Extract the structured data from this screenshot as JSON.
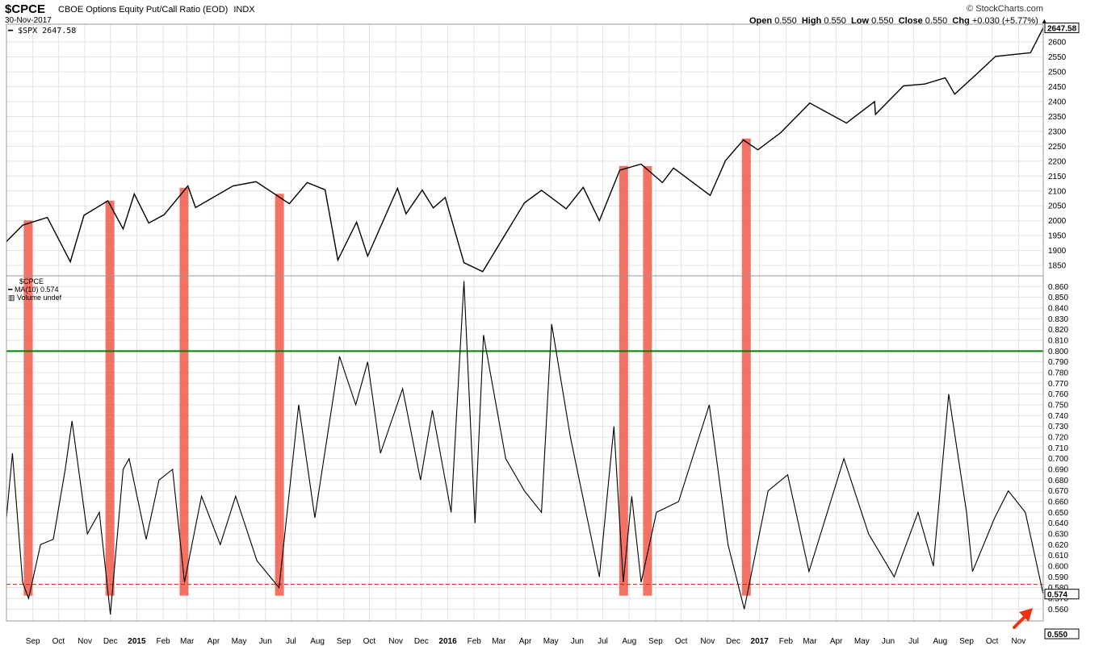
{
  "header": {
    "symbol": "$CPCE",
    "description": "CBOE Options Equity Put/Call Ratio (EOD)",
    "exchange": "INDX",
    "date": "30-Nov-2017",
    "brand": "© StockCharts.com",
    "ohlc": {
      "open_label": "Open",
      "open": "0.550",
      "high_label": "High",
      "high": "0.550",
      "low_label": "Low",
      "low": "0.550",
      "close_label": "Close",
      "close": "0.550",
      "chg_label": "Chg",
      "chg": "+0.030 (+5.77%)"
    }
  },
  "upper_panel": {
    "legend": "$SPX 2647.58",
    "last_value_label": "2647.58"
  },
  "lower_panel": {
    "legend_symbol": "$CPCE",
    "legend_ma": "MA(10) 0.574",
    "legend_volume": "Volume undef",
    "ma_value_label": "0.574",
    "last_value_label": "0.550"
  },
  "colors": {
    "price_line": "#000000",
    "ma_line": "#000000",
    "green_line": "#008000",
    "red_dashed": "#cc2200",
    "highlight_bar": "#f05a4a",
    "grid": "#e2e2e2",
    "arrow": "#ee3311"
  },
  "chart_data": [
    {
      "type": "line",
      "series": [
        {
          "name": "$SPX",
          "type": "line",
          "points": [
            [
              "2014-08-01",
              1930
            ],
            [
              "2014-08-20",
              1985
            ],
            [
              "2014-09-18",
              2011
            ],
            [
              "2014-10-15",
              1862
            ],
            [
              "2014-10-31",
              2018
            ],
            [
              "2014-11-28",
              2067
            ],
            [
              "2014-12-16",
              1972
            ],
            [
              "2014-12-29",
              2090
            ],
            [
              "2015-01-15",
              1992
            ],
            [
              "2015-02-02",
              2020
            ],
            [
              "2015-03-02",
              2117
            ],
            [
              "2015-03-11",
              2044
            ],
            [
              "2015-04-24",
              2117
            ],
            [
              "2015-05-21",
              2131
            ],
            [
              "2015-06-29",
              2057
            ],
            [
              "2015-07-20",
              2128
            ],
            [
              "2015-08-10",
              2104
            ],
            [
              "2015-08-25",
              1868
            ],
            [
              "2015-09-16",
              1995
            ],
            [
              "2015-09-29",
              1881
            ],
            [
              "2015-11-03",
              2109
            ],
            [
              "2015-11-13",
              2023
            ],
            [
              "2015-12-02",
              2103
            ],
            [
              "2015-12-15",
              2043
            ],
            [
              "2015-12-29",
              2078
            ],
            [
              "2016-01-20",
              1859
            ],
            [
              "2016-02-11",
              1829
            ],
            [
              "2016-03-31",
              2060
            ],
            [
              "2016-04-20",
              2102
            ],
            [
              "2016-05-19",
              2040
            ],
            [
              "2016-06-08",
              2112
            ],
            [
              "2016-06-27",
              2000
            ],
            [
              "2016-07-21",
              2170
            ],
            [
              "2016-08-15",
              2190
            ],
            [
              "2016-09-09",
              2128
            ],
            [
              "2016-09-22",
              2177
            ],
            [
              "2016-11-04",
              2085
            ],
            [
              "2016-11-22",
              2202
            ],
            [
              "2016-12-13",
              2271
            ],
            [
              "2016-12-30",
              2238
            ],
            [
              "2017-01-26",
              2296
            ],
            [
              "2017-03-01",
              2395
            ],
            [
              "2017-04-13",
              2328
            ],
            [
              "2017-05-16",
              2400
            ],
            [
              "2017-05-17",
              2357
            ],
            [
              "2017-06-19",
              2453
            ],
            [
              "2017-07-14",
              2459
            ],
            [
              "2017-08-07",
              2480
            ],
            [
              "2017-08-18",
              2425
            ],
            [
              "2017-09-14",
              2496
            ],
            [
              "2017-10-05",
              2552
            ],
            [
              "2017-11-15",
              2564
            ],
            [
              "2017-11-30",
              2647.58
            ]
          ]
        }
      ],
      "x_range": [
        "2014-08-01",
        "2017-11-30"
      ],
      "x_ticks": [
        "Sep",
        "Oct",
        "Nov",
        "Dec",
        "2015",
        "Feb",
        "Mar",
        "Apr",
        "May",
        "Jun",
        "Jul",
        "Aug",
        "Sep",
        "Oct",
        "Nov",
        "Dec",
        "2016",
        "Feb",
        "Mar",
        "Apr",
        "May",
        "Jun",
        "Jul",
        "Aug",
        "Sep",
        "Oct",
        "Nov",
        "Dec",
        "2017",
        "Feb",
        "Mar",
        "Apr",
        "May",
        "Jun",
        "Jul",
        "Aug",
        "Sep",
        "Oct",
        "Nov"
      ],
      "y_ticks": [
        1850,
        1900,
        1950,
        2000,
        2050,
        2100,
        2150,
        2200,
        2250,
        2300,
        2350,
        2400,
        2450,
        2500,
        2550,
        2600
      ],
      "ylim": [
        1815,
        2660
      ],
      "last_value": 2647.58,
      "grid": true
    },
    {
      "type": "line",
      "series": [
        {
          "name": "MA(10)",
          "type": "line",
          "points": [
            [
              "2014-08-01",
              0.645
            ],
            [
              "2014-08-08",
              0.705
            ],
            [
              "2014-08-20",
              0.585
            ],
            [
              "2014-08-27",
              0.57
            ],
            [
              "2014-09-10",
              0.62
            ],
            [
              "2014-09-25",
              0.625
            ],
            [
              "2014-10-09",
              0.69
            ],
            [
              "2014-10-17",
              0.735
            ],
            [
              "2014-11-04",
              0.63
            ],
            [
              "2014-11-18",
              0.65
            ],
            [
              "2014-12-01",
              0.555
            ],
            [
              "2014-12-16",
              0.69
            ],
            [
              "2014-12-23",
              0.7
            ],
            [
              "2015-01-12",
              0.625
            ],
            [
              "2015-01-27",
              0.68
            ],
            [
              "2015-02-12",
              0.69
            ],
            [
              "2015-02-26",
              0.585
            ],
            [
              "2015-03-18",
              0.665
            ],
            [
              "2015-04-09",
              0.62
            ],
            [
              "2015-04-27",
              0.665
            ],
            [
              "2015-05-22",
              0.605
            ],
            [
              "2015-06-17",
              0.58
            ],
            [
              "2015-07-10",
              0.75
            ],
            [
              "2015-07-29",
              0.645
            ],
            [
              "2015-08-27",
              0.795
            ],
            [
              "2015-09-15",
              0.75
            ],
            [
              "2015-09-29",
              0.79
            ],
            [
              "2015-10-14",
              0.705
            ],
            [
              "2015-11-09",
              0.765
            ],
            [
              "2015-11-30",
              0.68
            ],
            [
              "2015-12-14",
              0.745
            ],
            [
              "2016-01-05",
              0.65
            ],
            [
              "2016-01-20",
              0.865
            ],
            [
              "2016-02-02",
              0.64
            ],
            [
              "2016-02-12",
              0.815
            ],
            [
              "2016-03-09",
              0.7
            ],
            [
              "2016-03-31",
              0.67
            ],
            [
              "2016-04-20",
              0.65
            ],
            [
              "2016-05-02",
              0.825
            ],
            [
              "2016-05-24",
              0.72
            ],
            [
              "2016-06-27",
              0.59
            ],
            [
              "2016-07-14",
              0.73
            ],
            [
              "2016-07-25",
              0.585
            ],
            [
              "2016-08-04",
              0.665
            ],
            [
              "2016-08-15",
              0.585
            ],
            [
              "2016-09-02",
              0.65
            ],
            [
              "2016-09-28",
              0.66
            ],
            [
              "2016-11-03",
              0.75
            ],
            [
              "2016-11-25",
              0.62
            ],
            [
              "2016-12-14",
              0.56
            ],
            [
              "2017-01-11",
              0.67
            ],
            [
              "2017-02-03",
              0.685
            ],
            [
              "2017-02-28",
              0.595
            ],
            [
              "2017-04-10",
              0.7
            ],
            [
              "2017-05-09",
              0.63
            ],
            [
              "2017-06-08",
              0.59
            ],
            [
              "2017-07-06",
              0.65
            ],
            [
              "2017-07-24",
              0.6
            ],
            [
              "2017-08-11",
              0.76
            ],
            [
              "2017-09-01",
              0.65
            ],
            [
              "2017-09-08",
              0.595
            ],
            [
              "2017-10-04",
              0.645
            ],
            [
              "2017-10-20",
              0.67
            ],
            [
              "2017-11-09",
              0.65
            ],
            [
              "2017-11-30",
              0.574
            ]
          ]
        }
      ],
      "y_ticks": [
        0.56,
        0.57,
        0.58,
        0.59,
        0.6,
        0.61,
        0.62,
        0.63,
        0.64,
        0.65,
        0.66,
        0.67,
        0.68,
        0.69,
        0.7,
        0.71,
        0.72,
        0.73,
        0.74,
        0.75,
        0.76,
        0.77,
        0.78,
        0.79,
        0.8,
        0.81,
        0.82,
        0.83,
        0.84,
        0.85,
        0.86
      ],
      "ylim": [
        0.549,
        0.87
      ],
      "reference_lines": [
        {
          "value": 0.8,
          "style": "solid",
          "color": "green"
        },
        {
          "value": 0.583,
          "style": "dashed",
          "color": "red"
        }
      ],
      "highlight_dates": [
        "2014-08-26",
        "2014-11-30",
        "2015-02-25",
        "2015-06-17",
        "2016-07-25",
        "2016-08-22",
        "2016-12-16"
      ],
      "last_value": 0.55,
      "ma_last_value": 0.574,
      "grid": true
    }
  ]
}
